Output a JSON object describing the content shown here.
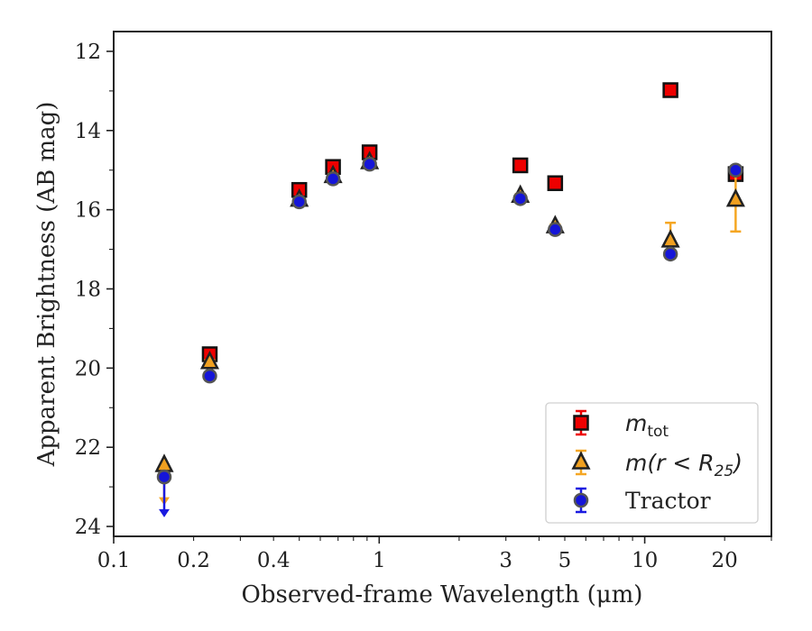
{
  "chart_data": {
    "type": "scatter",
    "title": "",
    "xlabel": "Observed-frame Wavelength (μm)",
    "ylabel": "Apparent Brightness (AB mag)",
    "xscale": "log",
    "xlim": [
      0.1,
      30
    ],
    "ylim": [
      24.25,
      11.5
    ],
    "y_inverted": true,
    "grid": false,
    "legend_position": "bottom-right",
    "x_tick_labels": [
      "0.1",
      "0.2",
      "0.4",
      "1",
      "3",
      "5",
      "10",
      "20"
    ],
    "x_tick_values": [
      0.1,
      0.2,
      0.4,
      1,
      3,
      5,
      10,
      20
    ],
    "y_tick_labels": [
      "12",
      "14",
      "16",
      "18",
      "20",
      "22",
      "24"
    ],
    "y_tick_values": [
      12,
      14,
      16,
      18,
      20,
      22,
      24
    ],
    "series": [
      {
        "name": "m_tot",
        "legend_parts": [
          "m",
          "tot",
          ""
        ],
        "marker": "square",
        "color": "#ee0000",
        "errcolor": "#ee0000",
        "points": [
          {
            "x": 0.23,
            "y": 19.65,
            "err": 0.1
          },
          {
            "x": 0.5,
            "y": 15.5,
            "err": 0.05
          },
          {
            "x": 0.67,
            "y": 14.92,
            "err": 0.05
          },
          {
            "x": 0.92,
            "y": 14.55,
            "err": 0.05
          },
          {
            "x": 3.4,
            "y": 14.88,
            "err": 0.05
          },
          {
            "x": 4.6,
            "y": 15.33,
            "err": 0.05
          },
          {
            "x": 12.5,
            "y": 12.98,
            "err": 0.05
          },
          {
            "x": 22.0,
            "y": 15.1,
            "err": 0.15
          }
        ]
      },
      {
        "name": "m(r < R_25)",
        "legend_parts": [
          "m(r < R",
          "25",
          ")"
        ],
        "marker": "triangle",
        "color": "#f0a020",
        "errcolor": "#f5a623",
        "points": [
          {
            "x": 0.155,
            "y": 22.45,
            "upper_limit": true,
            "arrow_to": 23.4
          },
          {
            "x": 0.23,
            "y": 19.85,
            "err": 0.05
          },
          {
            "x": 0.5,
            "y": 15.75,
            "err": 0.05
          },
          {
            "x": 0.67,
            "y": 15.15,
            "err": 0.05
          },
          {
            "x": 0.92,
            "y": 14.8,
            "err": 0.05
          },
          {
            "x": 3.4,
            "y": 15.65,
            "err": 0.05
          },
          {
            "x": 4.6,
            "y": 16.42,
            "err": 0.05
          },
          {
            "x": 12.5,
            "y": 16.78,
            "err": 0.45
          },
          {
            "x": 22.0,
            "y": 15.75,
            "err": 0.8
          }
        ]
      },
      {
        "name": "Tractor",
        "legend_parts": [
          "Tractor",
          "",
          ""
        ],
        "marker": "circle",
        "color": "#1515d8",
        "errcolor": "#1a1ae0",
        "points": [
          {
            "x": 0.155,
            "y": 22.75,
            "upper_limit": true,
            "arrow_to": 23.7
          },
          {
            "x": 0.23,
            "y": 20.2,
            "err": 0.05
          },
          {
            "x": 0.5,
            "y": 15.8,
            "err": 0.05
          },
          {
            "x": 0.67,
            "y": 15.22,
            "err": 0.05
          },
          {
            "x": 0.92,
            "y": 14.85,
            "err": 0.05
          },
          {
            "x": 3.4,
            "y": 15.72,
            "err": 0.05
          },
          {
            "x": 4.6,
            "y": 16.5,
            "err": 0.05
          },
          {
            "x": 12.5,
            "y": 17.12,
            "err": 0.05
          },
          {
            "x": 22.0,
            "y": 15.0,
            "err": 0.05
          }
        ]
      }
    ]
  }
}
